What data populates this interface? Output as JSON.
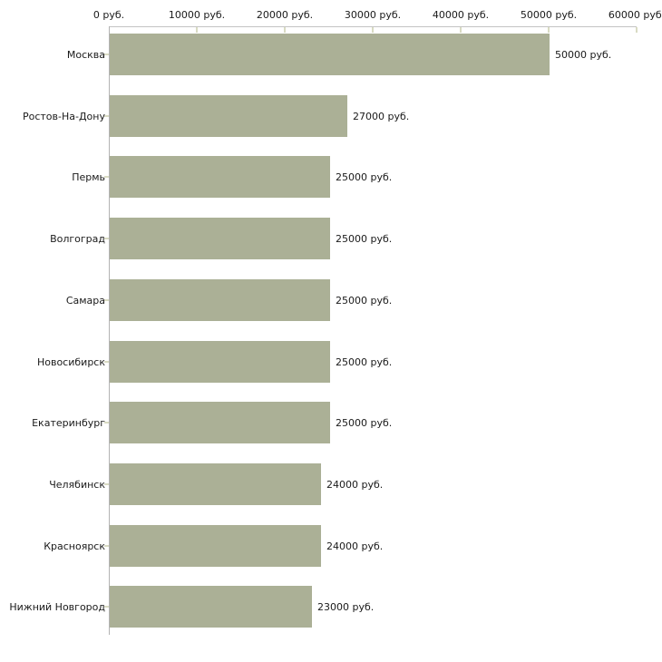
{
  "chart_data": {
    "type": "bar",
    "orientation": "horizontal",
    "title": "",
    "xlabel": "",
    "ylabel": "",
    "unit_suffix": " руб.",
    "categories": [
      "Москва",
      "Ростов-На-Дону",
      "Пермь",
      "Волгоград",
      "Самара",
      "Новосибирск",
      "Екатеринбург",
      "Челябинск",
      "Красноярск",
      "Нижний Новгород"
    ],
    "values": [
      50000,
      27000,
      25000,
      25000,
      25000,
      25000,
      25000,
      24000,
      24000,
      23000
    ],
    "value_labels": [
      "50000 руб.",
      "27000 руб.",
      "25000 руб.",
      "25000 руб.",
      "25000 руб.",
      "25000 руб.",
      "25000 руб.",
      "24000 руб.",
      "24000 руб.",
      "23000 руб."
    ],
    "x_tick_labels": [
      "0 руб.",
      "10000 руб.",
      "20000 руб.",
      "30000 руб.",
      "40000 руб.",
      "50000 руб.",
      "60000 руб."
    ],
    "x_tick_values": [
      0,
      10000,
      20000,
      30000,
      40000,
      50000,
      60000
    ],
    "xlim": [
      0,
      60000
    ],
    "grid": false,
    "legend": false,
    "colors": {
      "bar": "#abb096",
      "axis_line": "#c3c3c3",
      "y_axis_line": "#b3b3b3",
      "tick_mark": "#d9dbc3",
      "text": "#1a1a1a",
      "background": "#ffffff"
    }
  }
}
